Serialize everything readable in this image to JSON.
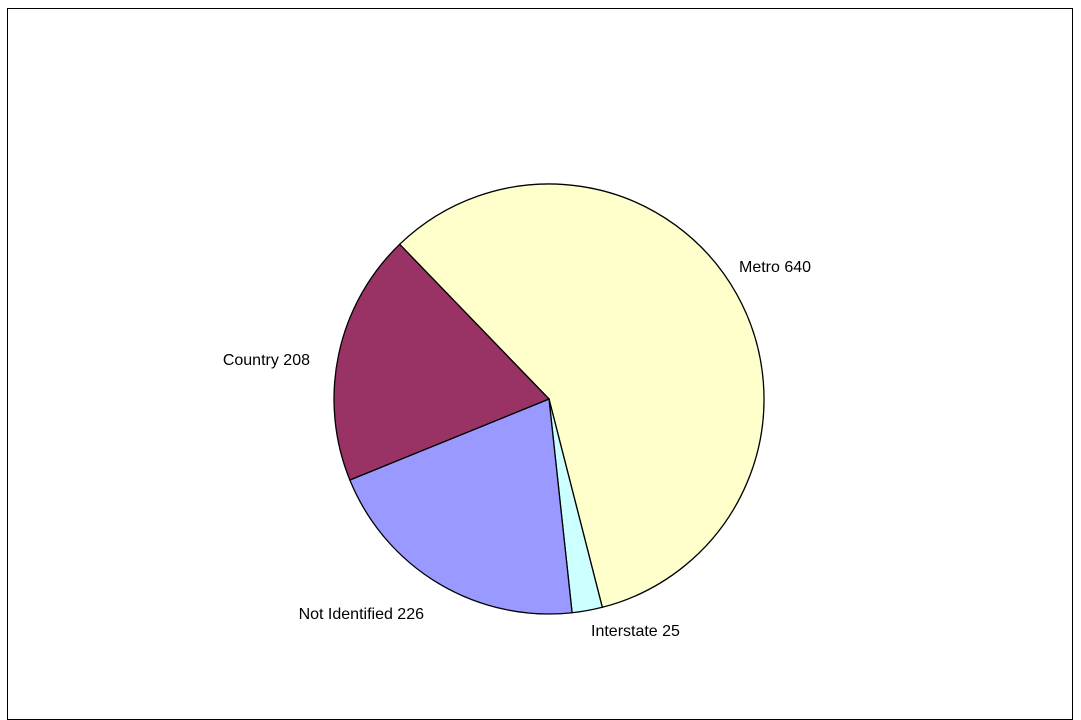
{
  "chart_data": {
    "type": "pie",
    "title": "",
    "start_angle_deg": 134,
    "slices": [
      {
        "label": "Metro 640",
        "name": "Metro",
        "value": 640,
        "color": "#FFFFCC"
      },
      {
        "label": "Interstate 25",
        "name": "Interstate",
        "value": 25,
        "color": "#CCFFFF"
      },
      {
        "label": "Not Identified 226",
        "name": "Not Identified",
        "value": 226,
        "color": "#9999FF"
      },
      {
        "label": "Country 208",
        "name": "Country",
        "value": 208,
        "color": "#993366"
      }
    ],
    "legend": "none"
  }
}
